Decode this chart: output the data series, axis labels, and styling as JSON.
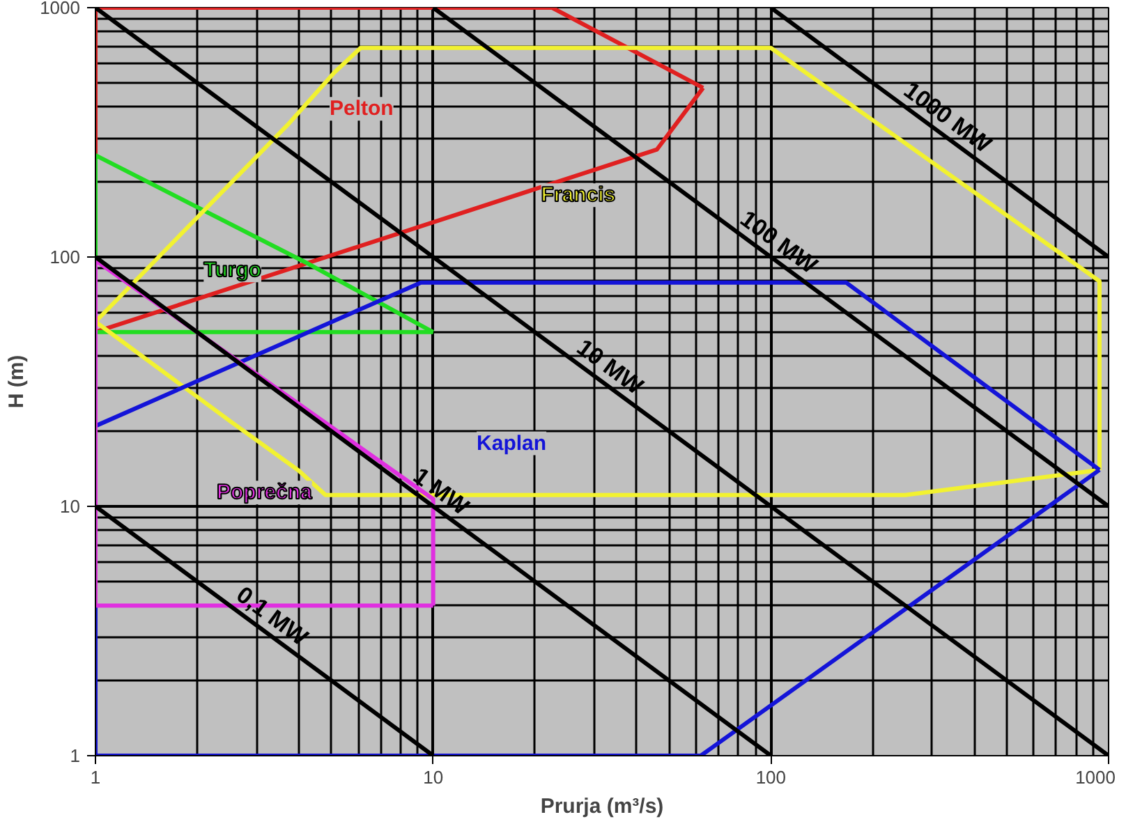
{
  "chart_data": {
    "type": "line",
    "xlabel": "Prurja (m³/s)",
    "ylabel": "H (m)",
    "log": "xy",
    "xlim": [
      1,
      1000
    ],
    "ylim": [
      1,
      1000
    ],
    "xticks": [
      1,
      10,
      100,
      1000
    ],
    "yticks": [
      1,
      10,
      100,
      1000
    ],
    "grid": true,
    "legend": false,
    "marker": "none",
    "line_style": "solid",
    "series": [
      {
        "name": "Pelton",
        "color": "#e02020",
        "x": [
          1,
          1,
          22.5,
          63
        ],
        "values": [
          50,
          1000,
          1000,
          477
        ]
      },
      {
        "color": "#e02020",
        "x": [
          1,
          46,
          63
        ],
        "values": [
          50,
          270,
          477
        ]
      },
      {
        "name": "Turgo",
        "color": "#22dd22",
        "x": [
          1,
          1,
          4.2,
          10
        ],
        "values": [
          50,
          256,
          95,
          50
        ]
      },
      {
        "color": "#22dd22",
        "x": [
          1,
          10
        ],
        "values": [
          50,
          50
        ]
      },
      {
        "name": "Francis",
        "color": "#f2f230",
        "x": [
          1,
          3.7,
          5.1,
          6.1,
          100,
          940,
          940
        ],
        "values": [
          55,
          338,
          550,
          690,
          690,
          80,
          14
        ]
      },
      {
        "color": "#f2f230",
        "x": [
          1,
          2.5,
          4.0,
          4.8,
          250,
          940
        ],
        "values": [
          55,
          22,
          13.9,
          11.1,
          11.1,
          14
        ]
      },
      {
        "name": "Kaplan",
        "color": "#1414d8",
        "x": [
          1,
          1,
          9.2,
          167,
          940
        ],
        "values": [
          1,
          21,
          79,
          79,
          14
        ]
      },
      {
        "color": "#1414d8",
        "x": [
          1,
          62,
          940
        ],
        "values": [
          1,
          1,
          14
        ]
      },
      {
        "name": "Poprečna",
        "color": "#e030e0",
        "x": [
          1,
          1,
          10,
          10
        ],
        "values": [
          4,
          97,
          10.7,
          4
        ]
      },
      {
        "color": "#e030e0",
        "x": [
          1,
          10
        ],
        "values": [
          4,
          4
        ]
      },
      {
        "name": "0,1 MW",
        "color": "#000000",
        "x": [
          1,
          10
        ],
        "values": [
          10,
          1
        ]
      },
      {
        "name": "1 MW",
        "color": "#000000",
        "x": [
          1,
          100
        ],
        "values": [
          100,
          1
        ]
      },
      {
        "name": "10 MW",
        "color": "#000000",
        "x": [
          1,
          1000
        ],
        "values": [
          1000,
          1
        ]
      },
      {
        "name": "100 MW",
        "color": "#000000",
        "x": [
          10,
          1000
        ],
        "values": [
          1000,
          10
        ]
      },
      {
        "name": "1000 MW",
        "color": "#000000",
        "x": [
          100,
          1000
        ],
        "values": [
          1000,
          100
        ]
      }
    ]
  }
}
